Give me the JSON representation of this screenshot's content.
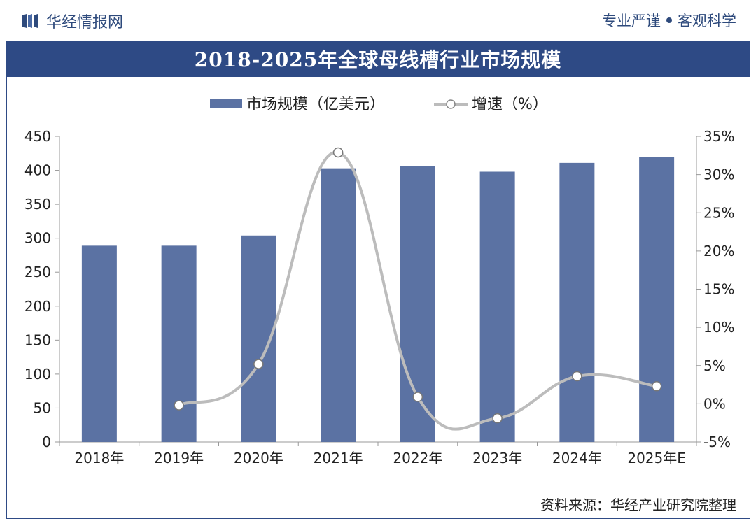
{
  "header": {
    "brand": "华经情报网",
    "slogan_left": "专业严谨",
    "slogan_right": "客观科学"
  },
  "title": "2018-2025年全球母线槽行业市场规模",
  "source": "资料来源：华经产业研究院整理",
  "colors": {
    "bar": "#5b72a3",
    "line": "#bcbcbc",
    "title_bg": "#2e4a85",
    "brand": "#2e4a7c"
  },
  "chart_data": {
    "type": "bar",
    "categories": [
      "2018年",
      "2019年",
      "2020年",
      "2021年",
      "2022年",
      "2023年",
      "2024年",
      "2025年E"
    ],
    "series": [
      {
        "name": "市场规模（亿美元）",
        "type": "bar",
        "axis": "left",
        "values": [
          289,
          289,
          304,
          403,
          406,
          398,
          411,
          420
        ]
      },
      {
        "name": "增速（%）",
        "type": "line",
        "axis": "right",
        "values": [
          null,
          -0.2,
          5.2,
          32.9,
          0.9,
          -1.9,
          3.6,
          2.3
        ]
      }
    ],
    "y_left": {
      "min": 0,
      "max": 450,
      "step": 50,
      "ticks": [
        "0",
        "50",
        "100",
        "150",
        "200",
        "250",
        "300",
        "350",
        "400",
        "450"
      ]
    },
    "y_right": {
      "min": -5,
      "max": 35,
      "step": 5,
      "ticks": [
        "-5%",
        "0%",
        "5%",
        "10%",
        "15%",
        "20%",
        "25%",
        "30%",
        "35%"
      ]
    },
    "legend": [
      "市场规模（亿美元）",
      "增速（%）"
    ]
  }
}
